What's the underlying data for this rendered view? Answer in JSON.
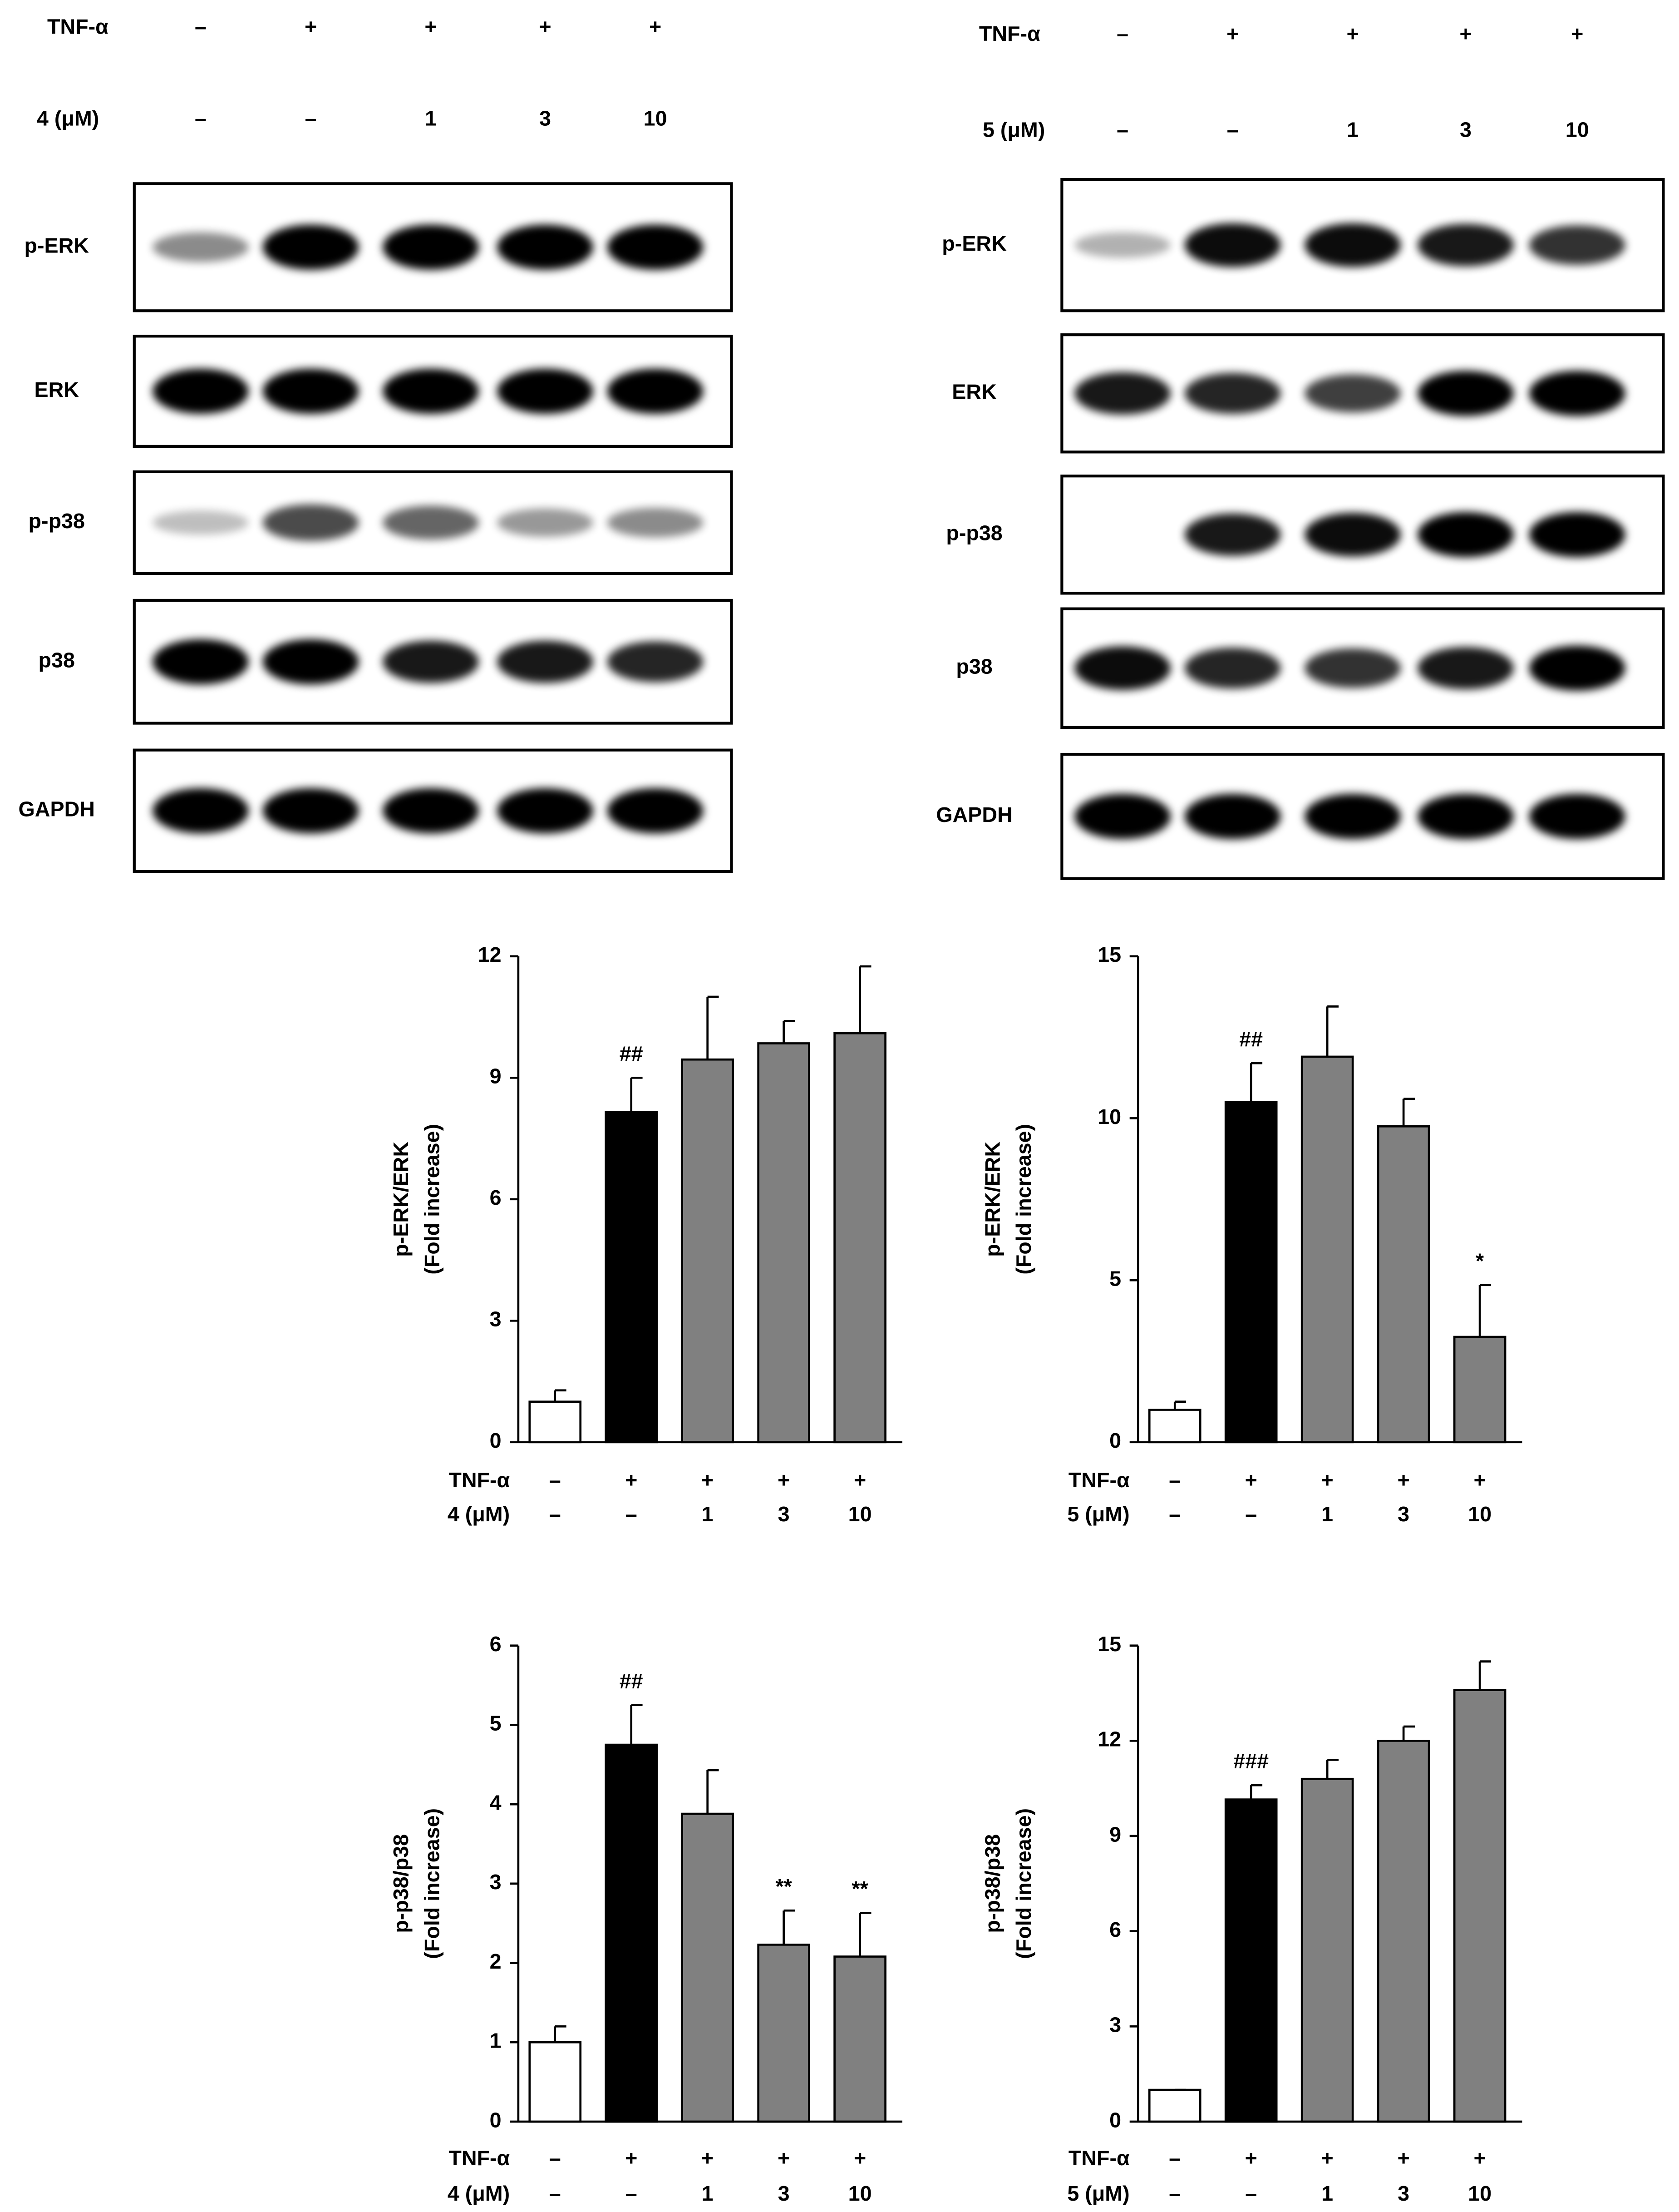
{
  "blots": [
    {
      "treatments": [
        {
          "label": "TNF-α",
          "entries": [
            "–",
            "+",
            "+",
            "+",
            "+"
          ]
        },
        {
          "label": "4 (μM)",
          "entries": [
            "–",
            "–",
            "1",
            "3",
            "10"
          ]
        }
      ],
      "bands": [
        "p-ERK",
        "ERK",
        "p-p38",
        "p38",
        "GAPDH"
      ]
    },
    {
      "treatments": [
        {
          "label": "TNF-α",
          "entries": [
            "–",
            "+",
            "+",
            "+",
            "+"
          ]
        },
        {
          "label": "5 (μM)",
          "entries": [
            "–",
            "–",
            "1",
            "3",
            "10"
          ]
        }
      ],
      "bands": [
        "p-ERK",
        "ERK",
        "p-p38",
        "p38",
        "GAPDH"
      ]
    }
  ],
  "chart_data": [
    {
      "type": "bar",
      "ylabel": [
        "p-ERK/ERK",
        "(Fold increase)"
      ],
      "ylim": [
        0,
        12
      ],
      "yticks": [
        0,
        3,
        6,
        9,
        12
      ],
      "values": [
        1.0,
        8.15,
        9.45,
        9.85,
        10.1
      ],
      "errors": [
        0.28,
        0.85,
        1.55,
        0.55,
        1.65
      ],
      "colors": [
        "#ffffff",
        "#000000",
        "#808080",
        "#808080",
        "#808080"
      ],
      "significance": [
        null,
        "##",
        null,
        null,
        null
      ],
      "treatments": [
        {
          "label": "TNF-α",
          "entries": [
            "–",
            "+",
            "+",
            "+",
            "+"
          ]
        },
        {
          "label": "4 (μM)",
          "entries": [
            "–",
            "–",
            "1",
            "3",
            "10"
          ]
        }
      ]
    },
    {
      "type": "bar",
      "ylabel": [
        "p-ERK/ERK",
        "(Fold increase)"
      ],
      "ylim": [
        0,
        15
      ],
      "yticks": [
        0,
        5,
        10,
        15
      ],
      "values": [
        1.0,
        10.5,
        11.9,
        9.75,
        3.25
      ],
      "errors": [
        0.25,
        1.2,
        1.55,
        0.85,
        1.6
      ],
      "colors": [
        "#ffffff",
        "#000000",
        "#808080",
        "#808080",
        "#808080"
      ],
      "significance": [
        null,
        "##",
        null,
        null,
        "*"
      ],
      "treatments": [
        {
          "label": "TNF-α",
          "entries": [
            "–",
            "+",
            "+",
            "+",
            "+"
          ]
        },
        {
          "label": "5 (μM)",
          "entries": [
            "–",
            "–",
            "1",
            "3",
            "10"
          ]
        }
      ]
    },
    {
      "type": "bar",
      "ylabel": [
        "p-p38/p38",
        "(Fold increase)"
      ],
      "ylim": [
        0,
        6
      ],
      "yticks": [
        0,
        1,
        2,
        3,
        4,
        5,
        6
      ],
      "values": [
        1.0,
        4.75,
        3.88,
        2.23,
        2.08
      ],
      "errors": [
        0.2,
        0.5,
        0.55,
        0.43,
        0.55
      ],
      "colors": [
        "#ffffff",
        "#000000",
        "#808080",
        "#808080",
        "#808080"
      ],
      "significance": [
        null,
        "##",
        null,
        "**",
        "**"
      ],
      "treatments": [
        {
          "label": "TNF-α",
          "entries": [
            "–",
            "+",
            "+",
            "+",
            "+"
          ]
        },
        {
          "label": "4 (μM)",
          "entries": [
            "–",
            "–",
            "1",
            "3",
            "10"
          ]
        }
      ]
    },
    {
      "type": "bar",
      "ylabel": [
        "p-p38/p38",
        "(Fold increase)"
      ],
      "ylim": [
        0,
        15
      ],
      "yticks": [
        0,
        3,
        6,
        9,
        12,
        15
      ],
      "values": [
        1.0,
        10.15,
        10.8,
        12.0,
        13.6
      ],
      "errors": [
        0,
        0.45,
        0.6,
        0.45,
        0.9
      ],
      "colors": [
        "#ffffff",
        "#000000",
        "#808080",
        "#808080",
        "#808080"
      ],
      "significance": [
        null,
        "###",
        null,
        null,
        null
      ],
      "treatments": [
        {
          "label": "TNF-α",
          "entries": [
            "–",
            "+",
            "+",
            "+",
            "+"
          ]
        },
        {
          "label": "5 (μM)",
          "entries": [
            "–",
            "–",
            "1",
            "3",
            "10"
          ]
        }
      ]
    }
  ]
}
